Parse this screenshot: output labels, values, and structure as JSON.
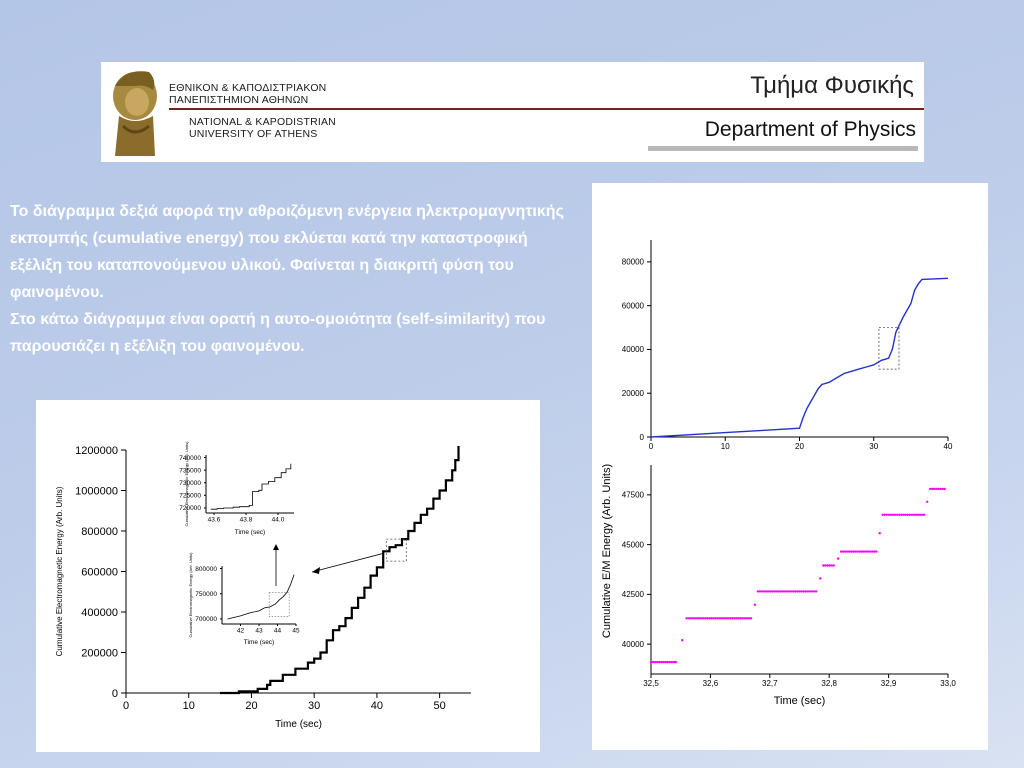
{
  "banner": {
    "uni_greek_line1": "ΕΘΝΙΚΟΝ & ΚΑΠΟΔΙΣΤΡΙΑΚΟΝ",
    "uni_greek_line2": "ΠΑΝΕΠΙΣΤΗΜΙΟΝ ΑΘΗΝΩΝ",
    "uni_en_line1": "NATIONAL & KAPODISTRIAN",
    "uni_en_line2": "UNIVERSITY OF ATHENS",
    "dept_greek": "Τμήμα Φυσικής",
    "dept_english": "Department of Physics"
  },
  "text": {
    "paragraph1": "Το διάγραμμα δεξιά αφορά την αθροιζόμενη ενέργεια ηλεκτρομαγνητικής εκπομπής (cumulative energy) που εκλύεται κατά την καταστροφική εξέλιξη του καταπονούμενου υλικού. Φαίνεται η διακριτή φύση του φαινομένου.",
    "paragraph2": "Στο κάτω διάγραμμα είναι ορατή η αυτο-ομοιότητα (self-similarity) που παρουσιάζει η εξέλιξη του φαινομένου."
  },
  "colors": {
    "background": "#b8c9e8",
    "text": "#ffffff",
    "line_blue": "#2233cc",
    "marker_magenta": "#ff00ff"
  },
  "chart_data": [
    {
      "type": "line",
      "id": "left-main",
      "xlabel": "Time (sec)",
      "ylabel": "Cumulative Electromagnetic Energy (Arb. Units)",
      "xlim": [
        0,
        55
      ],
      "ylim": [
        0,
        1200000
      ],
      "xticks": [
        "0",
        "10",
        "20",
        "30",
        "40",
        "50"
      ],
      "yticks": [
        "0",
        "200000",
        "400000",
        "600000",
        "800000",
        "1000000",
        "1200000"
      ],
      "x": [
        15,
        18,
        21,
        22.5,
        23,
        25,
        27,
        29,
        30,
        31,
        32,
        33,
        34,
        35,
        36,
        37,
        38,
        39,
        40,
        41,
        42,
        43,
        44,
        45,
        46,
        47,
        48,
        49,
        50,
        51,
        52,
        52.5,
        53
      ],
      "y": [
        0,
        8000,
        20000,
        40000,
        60000,
        90000,
        120000,
        150000,
        170000,
        200000,
        260000,
        310000,
        330000,
        370000,
        420000,
        470000,
        520000,
        580000,
        620000,
        700000,
        720000,
        730000,
        760000,
        800000,
        840000,
        880000,
        910000,
        960000,
        1000000,
        1050000,
        1100000,
        1150000,
        1220000
      ]
    },
    {
      "type": "line",
      "id": "left-inset-lower",
      "xlabel": "Time (sec)",
      "ylabel": "Cumulative Electromagnetic Energy (Arb. Units)",
      "xticks": [
        "42",
        "43",
        "44",
        "45"
      ],
      "yticks": [
        "700000",
        "750000",
        "800000"
      ],
      "xlim": [
        41,
        45
      ],
      "ylim": [
        690000,
        805000
      ],
      "x": [
        41.3,
        42,
        42.5,
        43,
        43.3,
        43.6,
        43.9,
        44.1,
        44.3,
        44.5,
        44.7,
        44.9
      ],
      "y": [
        700000,
        706000,
        712000,
        716000,
        722000,
        724000,
        730000,
        738000,
        744000,
        752000,
        768000,
        788000
      ]
    },
    {
      "type": "line",
      "id": "left-inset-upper",
      "xlabel": "Time (sec)",
      "ylabel": "Cumulative Electromagnetic Energy (Arb. Units)",
      "xticks": [
        "43.6",
        "43.8",
        "44.0"
      ],
      "yticks": [
        "720000",
        "725000",
        "730000",
        "735000",
        "740000"
      ],
      "xlim": [
        43.55,
        44.1
      ],
      "ylim": [
        718000,
        741000
      ],
      "x": [
        43.58,
        43.62,
        43.66,
        43.72,
        43.76,
        43.82,
        43.84,
        43.88,
        43.9,
        43.94,
        43.98,
        44.02,
        44.05,
        44.08
      ],
      "y": [
        719500,
        719800,
        720000,
        720300,
        720500,
        721000,
        726500,
        727000,
        729500,
        730500,
        732000,
        734000,
        735500,
        737500
      ]
    },
    {
      "type": "line",
      "id": "right-top",
      "xlabel": "",
      "ylabel": "Cumulative E/M Energy (Arb. Units)",
      "xlim": [
        0,
        40
      ],
      "ylim": [
        0,
        90000
      ],
      "xticks": [
        "0",
        "10",
        "20",
        "30",
        "40"
      ],
      "yticks": [
        "0",
        "20000",
        "40000",
        "60000",
        "80000"
      ],
      "x": [
        0,
        5,
        10,
        15,
        20,
        20.5,
        21,
        21.5,
        22,
        22.5,
        23,
        24,
        25,
        26,
        27,
        28,
        29,
        30,
        31,
        32,
        32.5,
        33,
        34,
        35,
        35.5,
        36,
        36.5,
        40
      ],
      "y": [
        0,
        1000,
        2000,
        3000,
        4000,
        9000,
        13000,
        16000,
        19000,
        22000,
        24000,
        25000,
        27000,
        29000,
        30000,
        31000,
        32000,
        33000,
        35000,
        36000,
        40000,
        48000,
        55000,
        61000,
        67000,
        70000,
        72000,
        72500
      ]
    },
    {
      "type": "scatter",
      "id": "right-bottom",
      "xlabel": "Time (sec)",
      "ylabel": "",
      "xlim": [
        32.5,
        33.0
      ],
      "ylim": [
        38500,
        49000
      ],
      "xticks": [
        "32,5",
        "32,6",
        "32,7",
        "32,8",
        "32,9",
        "33,0"
      ],
      "yticks": [
        "40000",
        "42500",
        "45000",
        "47500"
      ],
      "segments": [
        {
          "x0": 32.5,
          "x1": 32.545,
          "y": 39100
        },
        {
          "x0": 32.56,
          "x1": 32.67,
          "y": 41300
        },
        {
          "x0": 32.68,
          "x1": 32.78,
          "y": 42650
        },
        {
          "x0": 32.79,
          "x1": 32.81,
          "y": 43950
        },
        {
          "x0": 32.82,
          "x1": 32.88,
          "y": 44650
        },
        {
          "x0": 32.89,
          "x1": 32.96,
          "y": 46500
        },
        {
          "x0": 32.97,
          "x1": 32.995,
          "y": 47800
        }
      ]
    }
  ]
}
